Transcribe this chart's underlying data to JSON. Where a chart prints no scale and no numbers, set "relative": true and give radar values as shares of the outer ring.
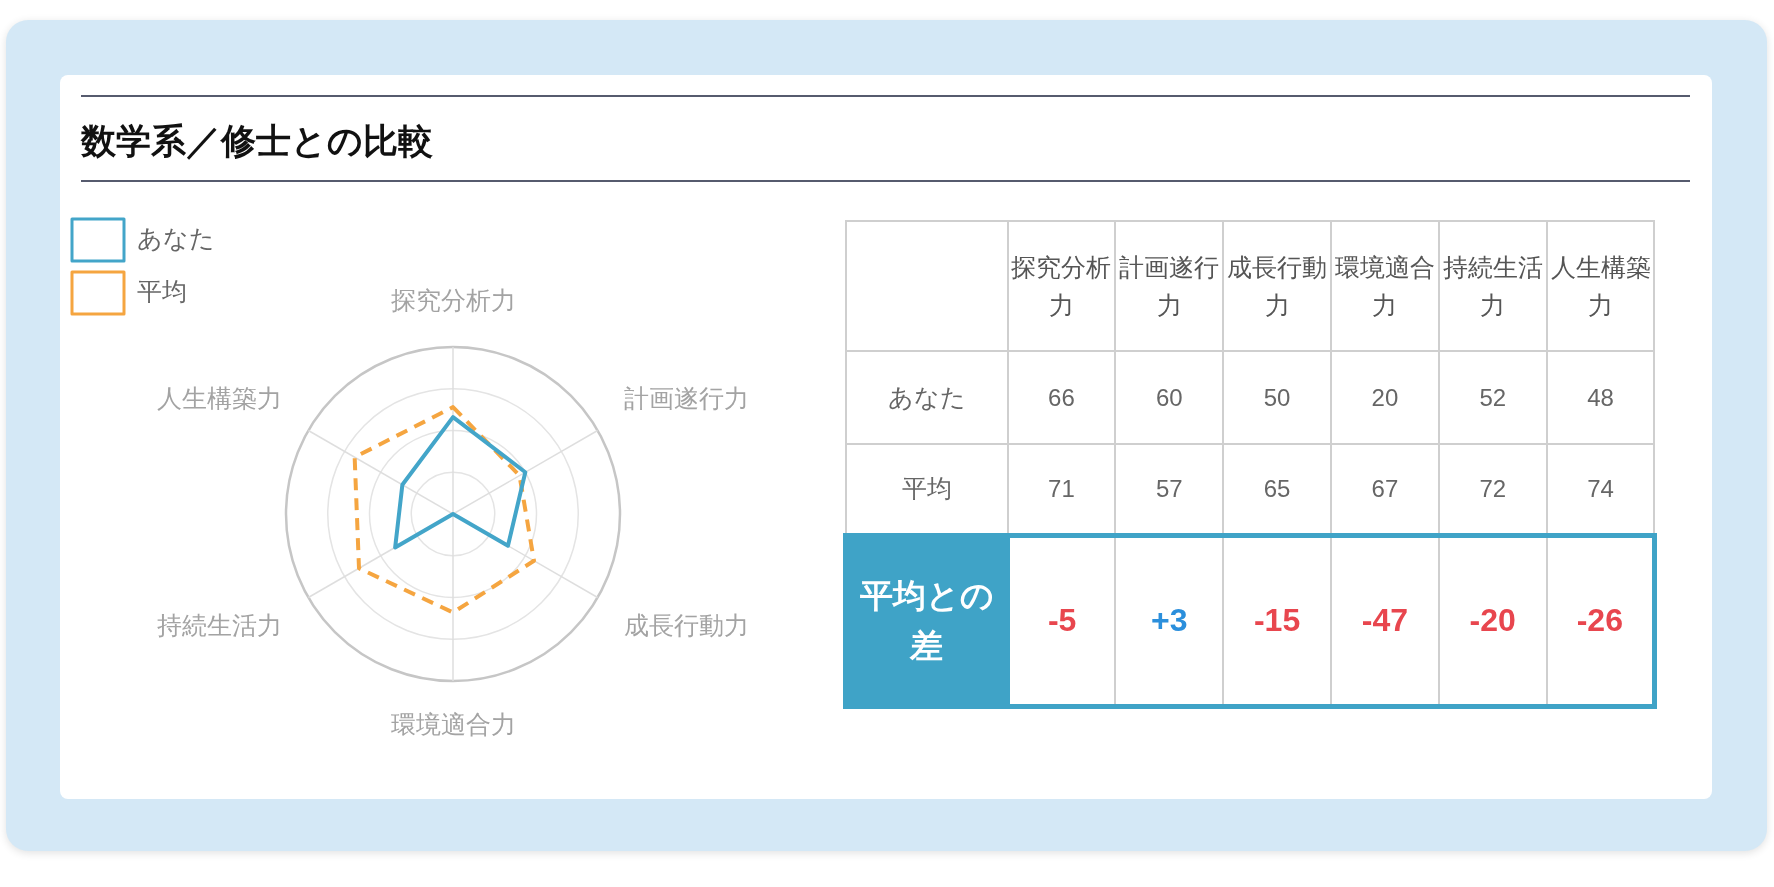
{
  "chart_data": [
    {
      "type": "radar",
      "title": "数学系／修士との比較",
      "categories": [
        "探究分析力",
        "計画遂行力",
        "成長行動力",
        "環境適合力",
        "持続生活力",
        "人生構築力"
      ],
      "series": [
        {
          "name": "あなた",
          "color": "#43a5c9",
          "values": [
            0.58,
            0.5,
            0.38,
            0,
            0.4,
            0.35
          ],
          "line_style": "solid"
        },
        {
          "name": "平均",
          "color": "#f5a540",
          "values": [
            0.64,
            0.46,
            0.56,
            0.59,
            0.65,
            0.68
          ],
          "line_style": "dashed"
        }
      ],
      "relative": true,
      "grid": true,
      "legend": "top left",
      "marker": "none"
    },
    {
      "type": "heatmap",
      "categories": [
        "探究分析力",
        "計画遂行力",
        "成長行動力",
        "環境適合力",
        "持続生活力",
        "人生構築力"
      ],
      "y_categories": [
        "あなた",
        "平均",
        "平均との差"
      ],
      "cells": [
        [
          66,
          60,
          50,
          20,
          52,
          48
        ],
        [
          71,
          57,
          65,
          67,
          72,
          74
        ],
        [
          -5,
          3,
          -15,
          -47,
          -20,
          -26
        ]
      ],
      "cell_labels": [
        [
          "66",
          "60",
          "50",
          "20",
          "52",
          "48"
        ],
        [
          "71",
          "57",
          "65",
          "67",
          "72",
          "74"
        ],
        [
          "-5",
          "+3",
          "-15",
          "-47",
          "-20",
          "-26"
        ]
      ],
      "data_labels": true
    }
  ]
}
